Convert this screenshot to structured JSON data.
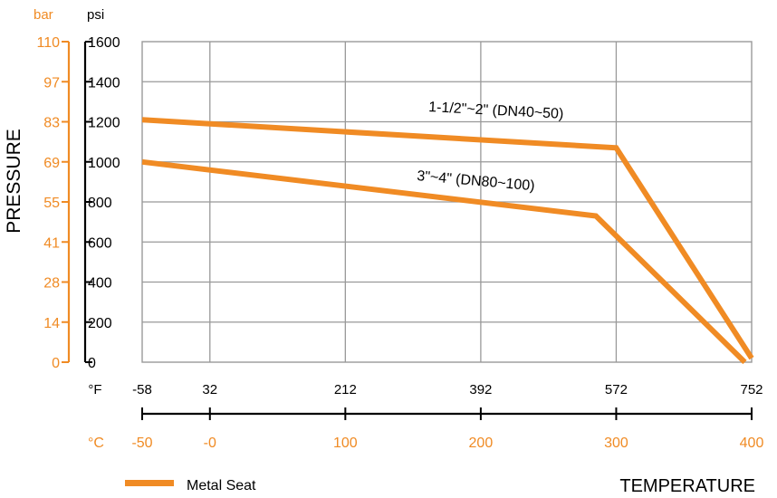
{
  "chart_data": {
    "type": "line",
    "ylabel": "PRESSURE",
    "xlabel": "TEMPERATURE",
    "y_units": {
      "bar": "bar",
      "psi": "psi"
    },
    "x_units": {
      "f": "°F",
      "c": "°C"
    },
    "psi_ticks": [
      "0",
      "200",
      "400",
      "600",
      "800",
      "1000",
      "1200",
      "1400",
      "1600"
    ],
    "bar_ticks": [
      "0",
      "14",
      "28",
      "41",
      "55",
      "69",
      "83",
      "97",
      "110"
    ],
    "f_ticks": [
      "-58",
      "32",
      "212",
      "392",
      "572",
      "752"
    ],
    "c_ticks": [
      "-50",
      "-0",
      "100",
      "200",
      "300",
      "400"
    ],
    "c_tick_values": [
      -50,
      0,
      100,
      200,
      300,
      400
    ],
    "xlim_c": [
      -50,
      400
    ],
    "ylim_psi": [
      0,
      1600
    ],
    "grid": true,
    "series": [
      {
        "label": "1-1/2\"~2\" (DN40~50)",
        "x": [
          -50,
          300,
          400
        ],
        "y": [
          1210,
          1070,
          20
        ]
      },
      {
        "label": "3\"~4\" (DN80~100)",
        "x": [
          -50,
          285,
          395
        ],
        "y": [
          1000,
          730,
          0
        ]
      }
    ],
    "legend": {
      "label": "Metal Seat",
      "position": "bottom-left"
    },
    "colors": {
      "series": "#F08B24",
      "bar_axis": "#F08B24",
      "celsius": "#F08B24",
      "axis": "#000000",
      "grid": "#999999"
    }
  }
}
